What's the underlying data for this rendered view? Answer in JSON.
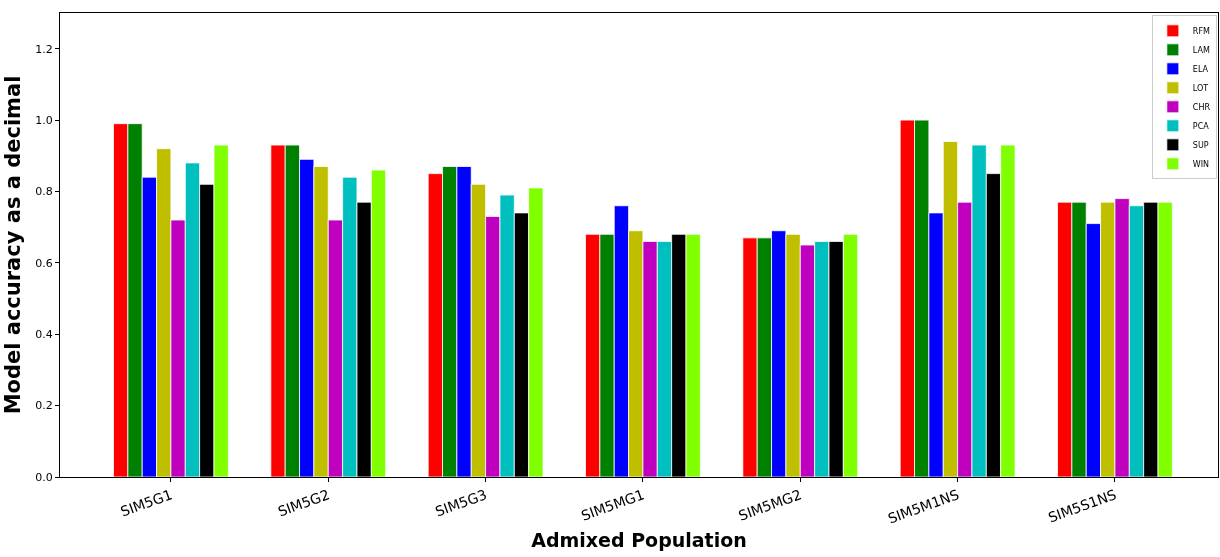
{
  "chart_data": {
    "type": "bar",
    "xlabel": "Admixed Population",
    "ylabel": "Model accuracy as a decimal",
    "categories": [
      "SIM5G1",
      "SIM5G2",
      "SIM5G3",
      "SIM5MG1",
      "SIM5MG2",
      "SIM5M1NS",
      "SIM5S1NS"
    ],
    "series": [
      {
        "name": "RFM",
        "color": "#ff0000",
        "values": [
          0.99,
          0.93,
          0.85,
          0.68,
          0.67,
          1.0,
          0.77
        ]
      },
      {
        "name": "LAM",
        "color": "#008000",
        "values": [
          0.99,
          0.93,
          0.87,
          0.68,
          0.67,
          1.0,
          0.77
        ]
      },
      {
        "name": "ELA",
        "color": "#0000ff",
        "values": [
          0.84,
          0.89,
          0.87,
          0.76,
          0.69,
          0.74,
          0.71
        ]
      },
      {
        "name": "LOT",
        "color": "#bfbf00",
        "values": [
          0.92,
          0.87,
          0.82,
          0.69,
          0.68,
          0.94,
          0.77
        ]
      },
      {
        "name": "CHR",
        "color": "#bf00bf",
        "values": [
          0.72,
          0.72,
          0.73,
          0.66,
          0.65,
          0.77,
          0.78
        ]
      },
      {
        "name": "PCA",
        "color": "#00bfbf",
        "values": [
          0.88,
          0.84,
          0.79,
          0.66,
          0.66,
          0.93,
          0.76
        ]
      },
      {
        "name": "SUP",
        "color": "#000000",
        "values": [
          0.82,
          0.77,
          0.74,
          0.68,
          0.66,
          0.85,
          0.77
        ]
      },
      {
        "name": "WIN",
        "color": "#7fff00",
        "values": [
          0.93,
          0.86,
          0.81,
          0.68,
          0.68,
          0.93,
          0.77
        ]
      }
    ],
    "ylim": [
      0,
      1.3
    ],
    "yticks": [
      {
        "value": 0,
        "label": "0.0"
      },
      0.2,
      0.4,
      0.6,
      0.8,
      {
        "value": 1,
        "label": "1.0"
      },
      1.2
    ],
    "grid": false,
    "legend": "top right"
  }
}
